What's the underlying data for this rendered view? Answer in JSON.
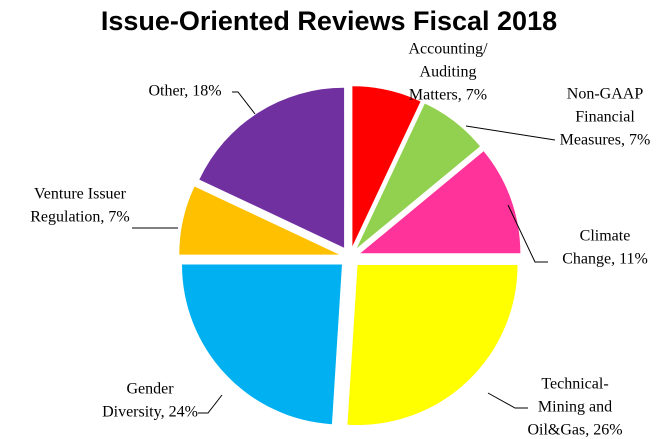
{
  "chart_data": {
    "type": "pie",
    "title": "Issue-Oriented Reviews Fiscal 2018",
    "values": [
      7,
      7,
      11,
      26,
      24,
      7,
      18
    ],
    "value_labels": [
      [
        "Accounting/",
        "Auditing",
        "Matters, 7%"
      ],
      [
        "Non-GAAP",
        "Financial",
        "Measures, 7%"
      ],
      [
        "Climate",
        "Change, 11%"
      ],
      [
        "Technical-",
        "Mining and",
        "Oil&Gas, 26%"
      ],
      [
        "Gender",
        "Diversity, 24%"
      ],
      [
        "Venture Issuer",
        "Regulation, 7%"
      ],
      [
        "Other, 18%"
      ]
    ],
    "colors": [
      "#ff0000",
      "#92d050",
      "#ff3399",
      "#ffff00",
      "#00b0f0",
      "#ffc000",
      "#7030a0"
    ]
  }
}
